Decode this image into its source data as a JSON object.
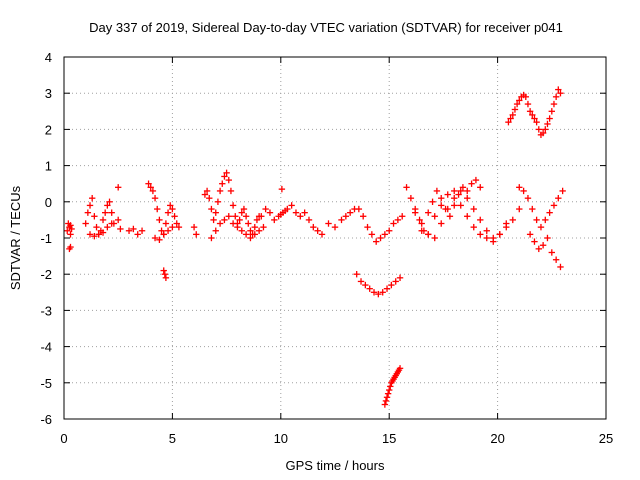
{
  "chart_data": {
    "type": "scatter",
    "title": "Day 337 of 2019, Sidereal Day-to-day VTEC variation (SDTVAR) for receiver p041",
    "xlabel": "GPS time / hours",
    "ylabel": "SDTVAR / TECUs",
    "xlim": [
      0,
      25
    ],
    "ylim": [
      -6,
      4
    ],
    "xticks": [
      0,
      5,
      10,
      15,
      20,
      25
    ],
    "yticks": [
      -6,
      -5,
      -4,
      -3,
      -2,
      -1,
      0,
      1,
      2,
      3,
      4
    ],
    "xtick_labels": [
      "0",
      "5",
      "10",
      "15",
      "20",
      "25"
    ],
    "ytick_labels": [
      "-6",
      "-5",
      "-4",
      "-3",
      "-2",
      "-1",
      "0",
      "1",
      "2",
      "3",
      "4"
    ],
    "grid": true,
    "marker": "+",
    "color": "#ff0000",
    "series": [
      {
        "name": "SDTVAR",
        "x": [
          0.15,
          0.2,
          0.25,
          0.3,
          0.35,
          0.25,
          0.3,
          0.3,
          1.0,
          1.1,
          1.2,
          1.3,
          1.4,
          1.5,
          1.6,
          1.7,
          1.8,
          1.9,
          2.0,
          2.1,
          2.2,
          2.3,
          1.2,
          1.4,
          1.6,
          1.8,
          2.0,
          2.2,
          2.5,
          2.6,
          3.0,
          3.2,
          3.4,
          3.6,
          3.9,
          4.0,
          4.1,
          4.2,
          4.3,
          4.4,
          4.5,
          4.6,
          4.7,
          4.8,
          4.9,
          5.0,
          5.1,
          5.2,
          5.3,
          4.2,
          4.4,
          4.6,
          4.8,
          5.0,
          4.6,
          4.65,
          4.7,
          6.0,
          6.1,
          6.5,
          6.6,
          6.7,
          6.8,
          6.9,
          7.0,
          7.1,
          7.2,
          7.3,
          7.4,
          7.5,
          7.6,
          7.7,
          7.8,
          7.9,
          8.0,
          8.1,
          8.2,
          8.3,
          8.4,
          8.5,
          8.6,
          8.7,
          8.8,
          8.9,
          9.0,
          6.8,
          7.0,
          7.2,
          7.4,
          7.6,
          7.8,
          8.0,
          8.2,
          8.4,
          8.6,
          8.8,
          9.0,
          9.2,
          9.1,
          9.3,
          9.5,
          9.7,
          9.9,
          10.1,
          10.3,
          10.5,
          10.7,
          10.9,
          11.1,
          11.3,
          11.5,
          11.7,
          11.9,
          10.0,
          10.2,
          12.2,
          12.5,
          12.8,
          13.0,
          13.2,
          13.4,
          13.6,
          13.8,
          14.0,
          14.2,
          14.4,
          14.6,
          14.8,
          15.0,
          15.2,
          15.4,
          15.6,
          13.5,
          13.7,
          13.9,
          14.1,
          14.3,
          14.5,
          14.7,
          14.9,
          15.1,
          15.3,
          15.5,
          14.8,
          14.9,
          15.0,
          15.1,
          15.2,
          15.3,
          15.4,
          15.5,
          14.85,
          14.95,
          15.05,
          15.15,
          15.25,
          15.35,
          15.45,
          15.8,
          16.0,
          16.2,
          16.4,
          16.6,
          16.8,
          17.0,
          17.2,
          17.4,
          17.6,
          17.8,
          18.0,
          18.2,
          18.4,
          18.6,
          18.8,
          19.0,
          19.2,
          16.2,
          16.5,
          16.8,
          17.1,
          17.4,
          17.7,
          18.0,
          18.3,
          18.6,
          18.9,
          19.2,
          19.5,
          19.8,
          20.1,
          20.4,
          16.5,
          16.8,
          17.1,
          17.4,
          17.7,
          18.0,
          18.3,
          18.6,
          18.9,
          19.2,
          19.5,
          19.8,
          20.1,
          20.4,
          20.7,
          21.0,
          20.5,
          20.6,
          20.7,
          20.8,
          20.9,
          21.0,
          21.1,
          21.2,
          21.3,
          21.4,
          21.5,
          21.6,
          21.7,
          21.8,
          21.9,
          22.0,
          22.1,
          22.2,
          22.3,
          22.4,
          22.5,
          22.6,
          22.7,
          22.8,
          22.9,
          21.0,
          21.2,
          21.4,
          21.6,
          21.8,
          22.0,
          22.2,
          22.4,
          22.6,
          22.8,
          23.0,
          21.5,
          21.7,
          21.9,
          22.1,
          22.3,
          22.5,
          22.7,
          22.9,
          10.05,
          2.5
        ],
        "y": [
          -0.8,
          -0.6,
          -0.7,
          -0.9,
          -0.75,
          -1.3,
          -1.25,
          -0.65,
          -0.6,
          -0.3,
          -0.1,
          0.1,
          -0.4,
          -0.7,
          -0.9,
          -0.8,
          -0.5,
          -0.3,
          -0.1,
          0.0,
          -0.3,
          -0.6,
          -0.9,
          -0.95,
          -0.9,
          -0.85,
          -0.7,
          -0.6,
          -0.5,
          -0.75,
          -0.8,
          -0.75,
          -0.9,
          -0.8,
          0.5,
          0.4,
          0.3,
          0.1,
          -0.2,
          -0.5,
          -0.8,
          -0.9,
          -0.6,
          -0.3,
          -0.1,
          -0.2,
          -0.4,
          -0.6,
          -0.7,
          -1.0,
          -1.05,
          -0.9,
          -0.8,
          -0.7,
          -1.9,
          -2.0,
          -2.1,
          -0.7,
          -0.9,
          0.2,
          0.3,
          0.1,
          -0.2,
          -0.5,
          -0.3,
          0.0,
          0.3,
          0.5,
          0.7,
          0.8,
          0.6,
          0.3,
          -0.1,
          -0.4,
          -0.6,
          -0.5,
          -0.3,
          -0.2,
          -0.4,
          -0.6,
          -0.8,
          -0.9,
          -0.7,
          -0.5,
          -0.4,
          -1.0,
          -0.8,
          -0.6,
          -0.5,
          -0.4,
          -0.6,
          -0.7,
          -0.8,
          -0.9,
          -1.0,
          -0.9,
          -0.8,
          -0.7,
          -0.4,
          -0.2,
          -0.3,
          -0.5,
          -0.4,
          -0.3,
          -0.2,
          -0.1,
          -0.3,
          -0.4,
          -0.3,
          -0.5,
          -0.7,
          -0.8,
          -0.9,
          -0.35,
          -0.25,
          -0.6,
          -0.7,
          -0.5,
          -0.4,
          -0.3,
          -0.2,
          -0.2,
          -0.4,
          -0.7,
          -0.9,
          -1.1,
          -1.0,
          -0.9,
          -0.8,
          -0.6,
          -0.5,
          -0.4,
          -2.0,
          -2.2,
          -2.3,
          -2.4,
          -2.5,
          -2.55,
          -2.5,
          -2.4,
          -2.3,
          -2.2,
          -2.1,
          -5.6,
          -5.4,
          -5.2,
          -5.0,
          -4.9,
          -4.8,
          -4.7,
          -4.6,
          -5.5,
          -5.3,
          -5.1,
          -4.95,
          -4.85,
          -4.75,
          -4.65,
          0.4,
          0.1,
          -0.2,
          -0.5,
          -0.8,
          -0.3,
          0.0,
          0.3,
          0.1,
          -0.2,
          -0.4,
          -0.1,
          0.2,
          0.4,
          0.3,
          0.5,
          0.6,
          0.4,
          -0.3,
          -0.6,
          -0.9,
          -0.4,
          -0.1,
          0.2,
          0.3,
          -0.1,
          -0.4,
          -0.7,
          -0.9,
          -1.0,
          -1.1,
          -0.9,
          -0.6,
          -0.8,
          -0.9,
          -1.0,
          -0.6,
          -0.2,
          0.1,
          0.3,
          0.1,
          -0.2,
          -0.5,
          -0.8,
          -1.0,
          -0.9,
          -0.7,
          -0.5,
          -0.2,
          2.2,
          2.3,
          2.4,
          2.55,
          2.7,
          2.8,
          2.9,
          2.95,
          2.9,
          2.7,
          2.5,
          2.4,
          2.3,
          2.2,
          2.0,
          1.85,
          1.9,
          2.0,
          2.15,
          2.3,
          2.5,
          2.7,
          2.9,
          3.1,
          3.0,
          0.4,
          0.3,
          0.1,
          -0.2,
          -0.5,
          -0.7,
          -0.5,
          -0.3,
          -0.1,
          0.1,
          0.3,
          -0.9,
          -1.1,
          -1.3,
          -1.2,
          -1.0,
          -1.4,
          -1.6,
          -1.8,
          0.35,
          0.4
        ]
      }
    ]
  }
}
